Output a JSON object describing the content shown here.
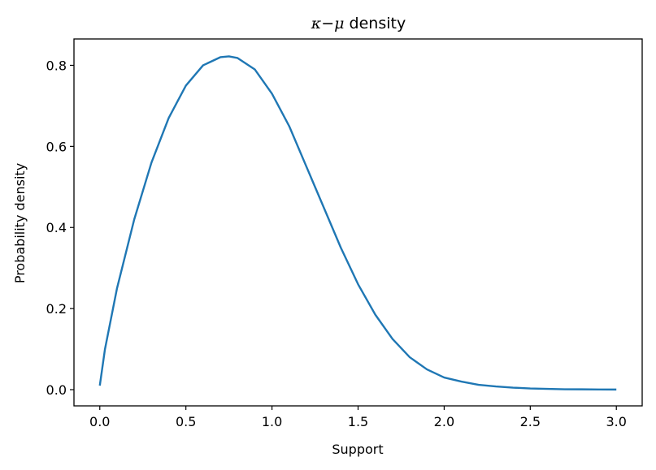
{
  "chart_data": {
    "type": "line",
    "title_parts": {
      "kappa": "κ",
      "minus": "−",
      "mu": "μ",
      "rest": " density"
    },
    "xlabel": "Support",
    "ylabel": "Probability density",
    "xlim": [
      -0.15,
      3.15
    ],
    "ylim": [
      -0.04,
      0.865
    ],
    "xticks": [
      0.0,
      0.5,
      1.0,
      1.5,
      2.0,
      2.5,
      3.0
    ],
    "xtick_labels": [
      "0.0",
      "0.5",
      "1.0",
      "1.5",
      "2.0",
      "2.5",
      "3.0"
    ],
    "yticks": [
      0.0,
      0.2,
      0.4,
      0.6,
      0.8
    ],
    "ytick_labels": [
      "0.0",
      "0.2",
      "0.4",
      "0.6",
      "0.8"
    ],
    "grid": false,
    "series": [
      {
        "color": "#1f77b4",
        "x": [
          0.0,
          0.03,
          0.1,
          0.2,
          0.3,
          0.4,
          0.5,
          0.6,
          0.7,
          0.75,
          0.8,
          0.9,
          1.0,
          1.1,
          1.2,
          1.3,
          1.4,
          1.5,
          1.6,
          1.7,
          1.8,
          1.9,
          2.0,
          2.1,
          2.2,
          2.3,
          2.4,
          2.5,
          2.6,
          2.7,
          2.8,
          2.9,
          3.0
        ],
        "y": [
          0.01,
          0.1,
          0.25,
          0.42,
          0.56,
          0.67,
          0.75,
          0.8,
          0.82,
          0.822,
          0.818,
          0.79,
          0.73,
          0.65,
          0.55,
          0.45,
          0.35,
          0.26,
          0.185,
          0.125,
          0.08,
          0.05,
          0.03,
          0.02,
          0.012,
          0.008,
          0.005,
          0.003,
          0.002,
          0.001,
          0.0008,
          0.0005,
          0.0003
        ]
      }
    ]
  }
}
